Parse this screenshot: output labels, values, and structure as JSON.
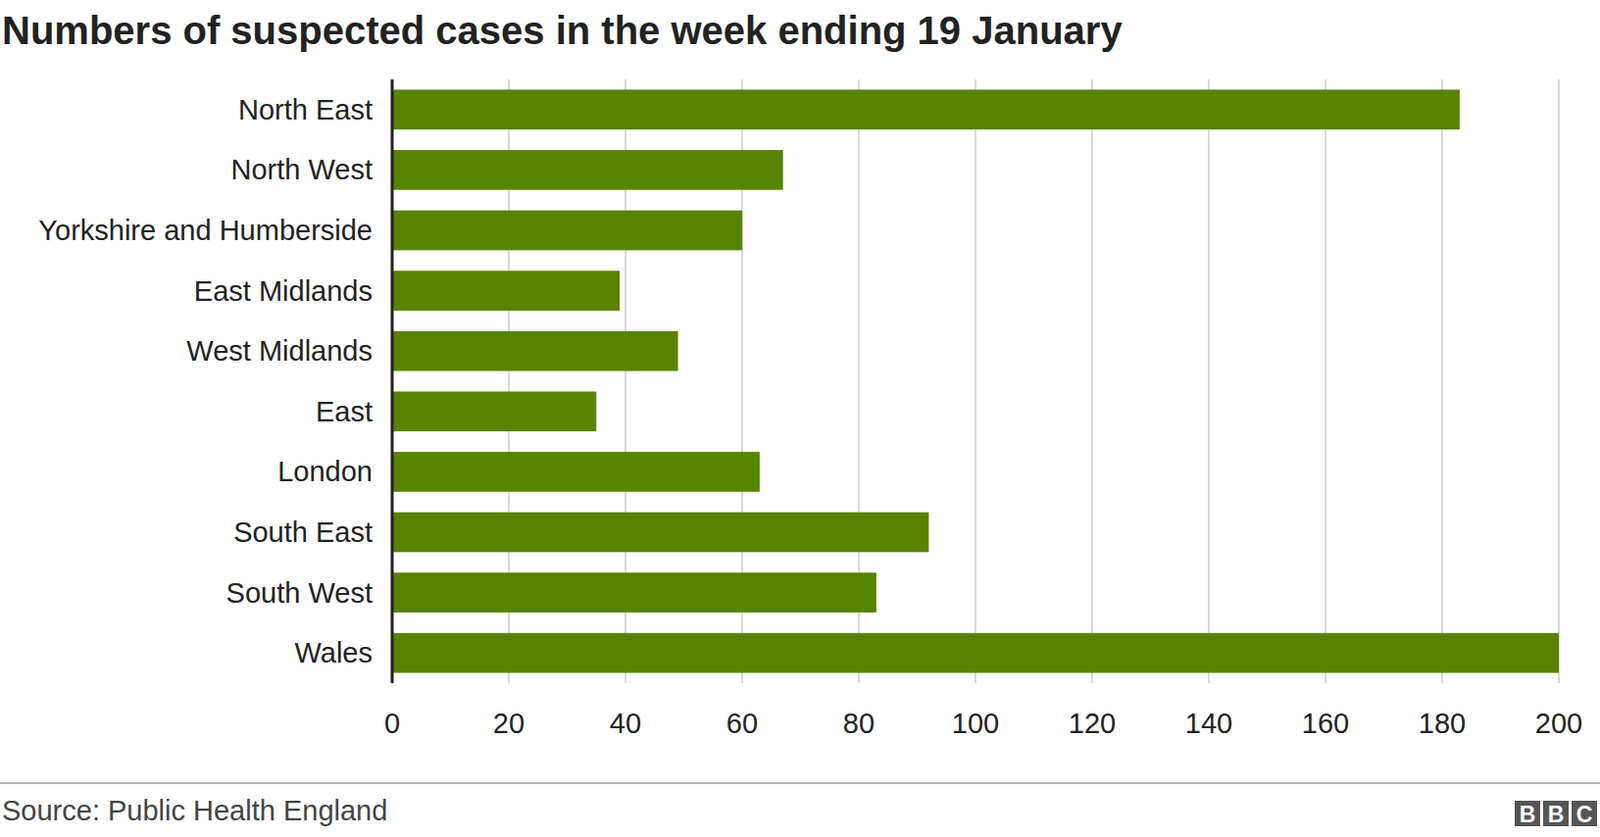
{
  "chart_data": {
    "type": "bar",
    "orientation": "horizontal",
    "title": "Numbers of suspected cases in the week ending 19 January",
    "categories": [
      "North East",
      "North West",
      "Yorkshire and Humberside",
      "East Midlands",
      "West Midlands",
      "East",
      "London",
      "South East",
      "South West",
      "Wales"
    ],
    "values": [
      183,
      67,
      60,
      39,
      49,
      35,
      63,
      92,
      83,
      200
    ],
    "color": "#588300",
    "xlim": [
      0,
      200
    ],
    "xticks": [
      0,
      20,
      40,
      60,
      80,
      100,
      120,
      140,
      160,
      180,
      200
    ],
    "grid": true,
    "source": "Source: Public Health England",
    "logo": "BBC"
  }
}
